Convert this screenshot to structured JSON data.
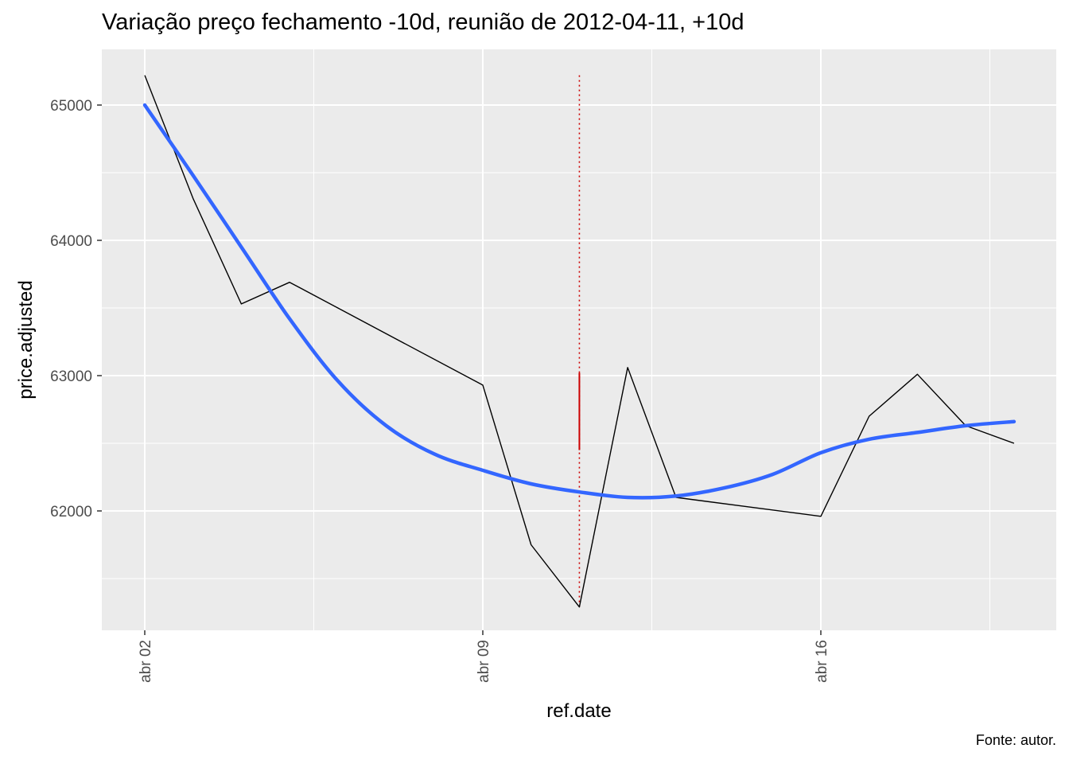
{
  "chart_data": {
    "type": "line",
    "title": "Variação preço fechamento -10d, reunião de 2012-04-11, +10d",
    "xlabel": "ref.date",
    "ylabel": "price.adjusted",
    "caption": "Fonte: autor.",
    "x_ticks": [
      "abr 02",
      "abr 09",
      "abr 16"
    ],
    "y_ticks": [
      "62000",
      "63000",
      "64000",
      "65000"
    ],
    "grid": true,
    "legend": "none",
    "colors": {
      "panel": "#ebebeb",
      "grid": "#ffffff",
      "price": "#000000",
      "smooth": "#3366ff",
      "meeting": "#cc0000"
    },
    "series": [
      {
        "values": [
          {
            "x": "2012-04-02",
            "y": 65220
          },
          {
            "x": "2012-04-03",
            "y": 64310
          },
          {
            "x": "2012-04-04",
            "y": 63530
          },
          {
            "x": "2012-04-05",
            "y": 63690
          },
          {
            "x": "2012-04-09",
            "y": 62930
          },
          {
            "x": "2012-04-10",
            "y": 61750
          },
          {
            "x": "2012-04-11",
            "y": 61290
          },
          {
            "x": "2012-04-12",
            "y": 63060
          },
          {
            "x": "2012-04-13",
            "y": 62100
          },
          {
            "x": "2012-04-16",
            "y": 61960
          },
          {
            "x": "2012-04-17",
            "y": 62700
          },
          {
            "x": "2012-04-18",
            "y": 63010
          },
          {
            "x": "2012-04-19",
            "y": 62630
          },
          {
            "x": "2012-04-20",
            "y": 62500
          }
        ]
      },
      {
        "values": [
          {
            "x": "2012-04-02",
            "y": 65000
          },
          {
            "x": "2012-04-03",
            "y": 64480
          },
          {
            "x": "2012-04-04",
            "y": 63950
          },
          {
            "x": "2012-04-05",
            "y": 63420
          },
          {
            "x": "2012-04-06",
            "y": 62960
          },
          {
            "x": "2012-04-07",
            "y": 62630
          },
          {
            "x": "2012-04-08",
            "y": 62420
          },
          {
            "x": "2012-04-09",
            "y": 62300
          },
          {
            "x": "2012-04-10",
            "y": 62200
          },
          {
            "x": "2012-04-11",
            "y": 62140
          },
          {
            "x": "2012-04-12",
            "y": 62100
          },
          {
            "x": "2012-04-13",
            "y": 62110
          },
          {
            "x": "2012-04-14",
            "y": 62170
          },
          {
            "x": "2012-04-15",
            "y": 62270
          },
          {
            "x": "2012-04-16",
            "y": 62430
          },
          {
            "x": "2012-04-17",
            "y": 62530
          },
          {
            "x": "2012-04-18",
            "y": 62580
          },
          {
            "x": "2012-04-19",
            "y": 62630
          },
          {
            "x": "2012-04-20",
            "y": 62660
          }
        ]
      }
    ],
    "meeting_marker": {
      "x": "2012-04-11",
      "dotted_range": [
        61290,
        65220
      ],
      "solid_range": [
        62450,
        63020
      ]
    }
  }
}
